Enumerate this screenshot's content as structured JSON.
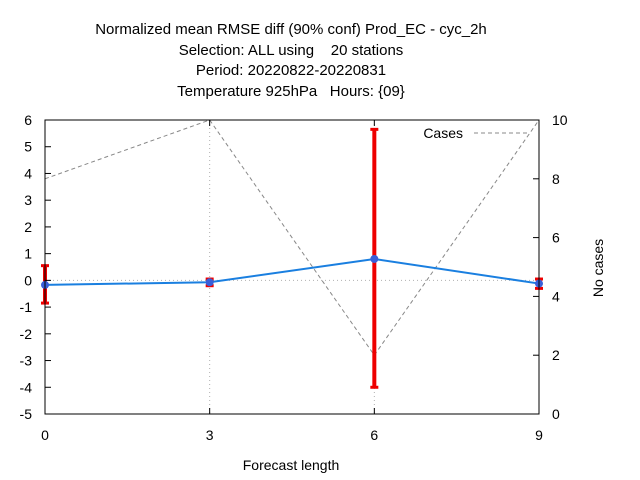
{
  "chart_data": {
    "type": "line",
    "title_lines": [
      "Normalized mean RMSE diff (90% conf) Prod_EC - cyc_2h",
      "Selection: ALL using    20 stations",
      "Period: 20220822-20220831",
      "Temperature 925hPa   Hours: {09}"
    ],
    "xlabel": "Forecast length",
    "ylabel": "",
    "y2label": "No cases",
    "x": [
      0,
      3,
      6,
      9
    ],
    "xlim": [
      0,
      9
    ],
    "ylim": [
      -5,
      6
    ],
    "y2lim": [
      0,
      10
    ],
    "xticks": [
      0,
      3,
      6,
      9
    ],
    "yticks": [
      -5,
      -4,
      -3,
      -2,
      -1,
      0,
      1,
      2,
      3,
      4,
      5,
      6
    ],
    "y2ticks": [
      0,
      2,
      4,
      6,
      8,
      10
    ],
    "grid": true,
    "legend_position": "top-right",
    "series": [
      {
        "axis": "left",
        "values": [
          -0.17,
          -0.07,
          0.8,
          -0.12
        ],
        "error_low": [
          -0.85,
          -0.2,
          -4.0,
          -0.3
        ],
        "error_high": [
          0.55,
          0.05,
          5.65,
          0.05
        ],
        "color": "#1a7fe0",
        "marker_color": "#3a5fd8",
        "error_color": "#ee0000"
      },
      {
        "name": "Cases",
        "axis": "right",
        "values": [
          8,
          10,
          2,
          10
        ],
        "color": "#888888",
        "style": "dashed"
      }
    ]
  }
}
